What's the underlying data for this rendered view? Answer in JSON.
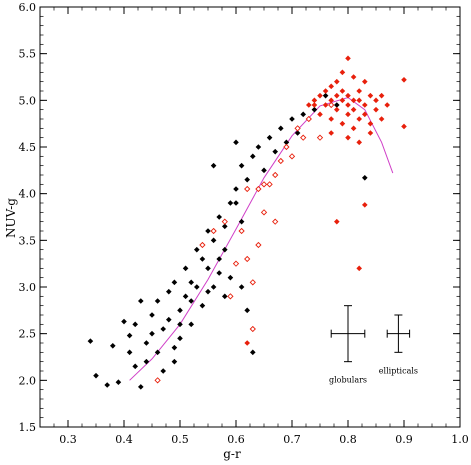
{
  "chart_data": {
    "type": "scatter",
    "xlabel": "g-r",
    "ylabel": "NUV-g",
    "xlim": [
      0.25,
      1.0
    ],
    "ylim": [
      1.5,
      6.0
    ],
    "x_ticks": [
      "0.3",
      "0.4",
      "0.5",
      "0.6",
      "0.7",
      "0.8",
      "0.9",
      "1.0"
    ],
    "y_ticks": [
      "1.5",
      "2.0",
      "2.5",
      "3.0",
      "3.5",
      "4.0",
      "4.5",
      "5.0",
      "5.5",
      "6.0"
    ],
    "colors": {
      "black": "#000000",
      "red": "#e8200c",
      "curve": "#d040c8"
    },
    "series": [
      {
        "marker": "filled-diamond",
        "color": "#000000",
        "points": [
          [
            0.34,
            2.42
          ],
          [
            0.35,
            2.05
          ],
          [
            0.37,
            1.95
          ],
          [
            0.38,
            2.37
          ],
          [
            0.39,
            1.98
          ],
          [
            0.4,
            2.63
          ],
          [
            0.41,
            2.48
          ],
          [
            0.41,
            2.3
          ],
          [
            0.42,
            2.15
          ],
          [
            0.42,
            2.6
          ],
          [
            0.43,
            1.93
          ],
          [
            0.43,
            2.85
          ],
          [
            0.44,
            2.4
          ],
          [
            0.44,
            2.2
          ],
          [
            0.45,
            2.7
          ],
          [
            0.45,
            2.5
          ],
          [
            0.46,
            2.3
          ],
          [
            0.46,
            2.85
          ],
          [
            0.47,
            2.55
          ],
          [
            0.47,
            2.1
          ],
          [
            0.48,
            2.95
          ],
          [
            0.48,
            2.65
          ],
          [
            0.49,
            2.35
          ],
          [
            0.49,
            3.05
          ],
          [
            0.5,
            2.75
          ],
          [
            0.5,
            2.45
          ],
          [
            0.51,
            3.2
          ],
          [
            0.51,
            2.9
          ],
          [
            0.52,
            3.05
          ],
          [
            0.52,
            2.6
          ],
          [
            0.53,
            3.4
          ],
          [
            0.53,
            3.0
          ],
          [
            0.54,
            3.3
          ],
          [
            0.54,
            2.8
          ],
          [
            0.55,
            3.6
          ],
          [
            0.55,
            3.2
          ],
          [
            0.56,
            3.5
          ],
          [
            0.56,
            3.0
          ],
          [
            0.56,
            4.3
          ],
          [
            0.57,
            3.75
          ],
          [
            0.57,
            3.3
          ],
          [
            0.58,
            3.4
          ],
          [
            0.58,
            2.9
          ],
          [
            0.59,
            3.9
          ],
          [
            0.59,
            3.1
          ],
          [
            0.6,
            4.05
          ],
          [
            0.6,
            4.55
          ],
          [
            0.61,
            4.3
          ],
          [
            0.61,
            3.7
          ],
          [
            0.62,
            4.15
          ],
          [
            0.62,
            2.75
          ],
          [
            0.63,
            4.4
          ],
          [
            0.63,
            2.55
          ],
          [
            0.64,
            4.5
          ],
          [
            0.65,
            4.25
          ],
          [
            0.66,
            4.6
          ],
          [
            0.67,
            4.45
          ],
          [
            0.68,
            4.7
          ],
          [
            0.69,
            4.55
          ],
          [
            0.7,
            4.8
          ],
          [
            0.71,
            4.65
          ],
          [
            0.72,
            4.85
          ],
          [
            0.74,
            4.9
          ],
          [
            0.76,
            5.05
          ],
          [
            0.78,
            4.95
          ],
          [
            0.83,
            4.17
          ],
          [
            0.49,
            2.2
          ],
          [
            0.5,
            2.6
          ],
          [
            0.52,
            2.85
          ],
          [
            0.55,
            2.95
          ],
          [
            0.57,
            3.15
          ],
          [
            0.58,
            3.65
          ],
          [
            0.6,
            3.9
          ],
          [
            0.61,
            3.0
          ],
          [
            0.63,
            2.3
          ]
        ]
      },
      {
        "marker": "filled-diamond",
        "color": "#e8200c",
        "points": [
          [
            0.73,
            4.95
          ],
          [
            0.74,
            5.0
          ],
          [
            0.75,
            5.05
          ],
          [
            0.75,
            4.85
          ],
          [
            0.76,
            4.95
          ],
          [
            0.76,
            5.1
          ],
          [
            0.77,
            5.0
          ],
          [
            0.77,
            4.8
          ],
          [
            0.77,
            5.15
          ],
          [
            0.78,
            5.05
          ],
          [
            0.78,
            4.9
          ],
          [
            0.78,
            5.2
          ],
          [
            0.79,
            5.0
          ],
          [
            0.79,
            4.75
          ],
          [
            0.79,
            5.3
          ],
          [
            0.79,
            5.1
          ],
          [
            0.8,
            4.95
          ],
          [
            0.8,
            5.45
          ],
          [
            0.8,
            4.85
          ],
          [
            0.8,
            5.05
          ],
          [
            0.81,
            5.0
          ],
          [
            0.81,
            5.25
          ],
          [
            0.81,
            4.7
          ],
          [
            0.81,
            4.9
          ],
          [
            0.82,
            5.1
          ],
          [
            0.82,
            4.8
          ],
          [
            0.82,
            5.0
          ],
          [
            0.83,
            4.95
          ],
          [
            0.83,
            5.2
          ],
          [
            0.83,
            4.85
          ],
          [
            0.84,
            5.05
          ],
          [
            0.84,
            4.75
          ],
          [
            0.85,
            5.0
          ],
          [
            0.85,
            4.9
          ],
          [
            0.86,
            5.05
          ],
          [
            0.86,
            4.8
          ],
          [
            0.87,
            4.95
          ],
          [
            0.9,
            5.22
          ],
          [
            0.9,
            4.72
          ],
          [
            0.82,
            3.2
          ],
          [
            0.78,
            3.7
          ],
          [
            0.83,
            3.88
          ],
          [
            0.62,
            2.4
          ],
          [
            0.74,
            4.95
          ],
          [
            0.77,
            4.65
          ],
          [
            0.8,
            4.6
          ],
          [
            0.82,
            4.55
          ],
          [
            0.84,
            4.65
          ]
        ]
      },
      {
        "marker": "open-diamond",
        "color": "#e8200c",
        "points": [
          [
            0.46,
            2.0
          ],
          [
            0.54,
            3.45
          ],
          [
            0.56,
            3.6
          ],
          [
            0.58,
            3.7
          ],
          [
            0.59,
            2.9
          ],
          [
            0.6,
            3.25
          ],
          [
            0.61,
            3.6
          ],
          [
            0.62,
            3.3
          ],
          [
            0.63,
            3.05
          ],
          [
            0.63,
            2.55
          ],
          [
            0.64,
            4.05
          ],
          [
            0.64,
            3.45
          ],
          [
            0.65,
            3.8
          ],
          [
            0.66,
            4.1
          ],
          [
            0.67,
            4.2
          ],
          [
            0.68,
            4.35
          ],
          [
            0.69,
            4.5
          ],
          [
            0.7,
            4.4
          ],
          [
            0.71,
            4.7
          ],
          [
            0.72,
            4.6
          ],
          [
            0.73,
            4.8
          ],
          [
            0.75,
            4.6
          ],
          [
            0.77,
            4.95
          ],
          [
            0.62,
            4.05
          ],
          [
            0.65,
            4.1
          ],
          [
            0.67,
            3.7
          ]
        ]
      }
    ],
    "curve": [
      [
        0.41,
        2.0
      ],
      [
        0.45,
        2.23
      ],
      [
        0.5,
        2.6
      ],
      [
        0.55,
        3.08
      ],
      [
        0.6,
        3.62
      ],
      [
        0.65,
        4.17
      ],
      [
        0.7,
        4.62
      ],
      [
        0.75,
        4.94
      ],
      [
        0.8,
        5.03
      ],
      [
        0.83,
        4.9
      ],
      [
        0.86,
        4.55
      ],
      [
        0.88,
        4.22
      ]
    ],
    "error_bars": [
      {
        "label": "globulars",
        "x": 0.8,
        "y": 2.5,
        "xerr": 0.03,
        "yerr": 0.3
      },
      {
        "label": "ellipticals",
        "x": 0.89,
        "y": 2.5,
        "xerr": 0.02,
        "yerr": 0.2
      }
    ]
  }
}
